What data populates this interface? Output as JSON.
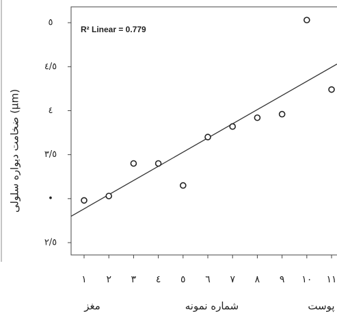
{
  "chart_data": {
    "type": "scatter",
    "y_label": "ضخامت دیواره سلولی (μm)",
    "x_label": "شماره نمونه",
    "group_labels": [
      "مغز",
      "پوست"
    ],
    "annotation": "R² Linear = 0.779",
    "x": [
      1,
      2,
      3,
      4,
      5,
      6,
      7,
      8,
      9,
      10,
      11
    ],
    "values": [
      2.98,
      3.03,
      3.4,
      3.4,
      3.15,
      3.7,
      3.82,
      3.92,
      3.96,
      5.03,
      4.24
    ],
    "fit_line": {
      "x": [
        0.475,
        11.22
      ],
      "y": [
        2.8,
        4.53
      ]
    },
    "xlim": [
      0.475,
      11.22
    ],
    "ylim": [
      2.36,
      5.18
    ],
    "xticks": [
      {
        "value": 1,
        "label": "۱"
      },
      {
        "value": 2,
        "label": "۲"
      },
      {
        "value": 3,
        "label": "۳"
      },
      {
        "value": 4,
        "label": "٤"
      },
      {
        "value": 5,
        "label": "٥"
      },
      {
        "value": 6,
        "label": "٦"
      },
      {
        "value": 7,
        "label": "٧"
      },
      {
        "value": 8,
        "label": "٨"
      },
      {
        "value": 9,
        "label": "٩"
      },
      {
        "value": 10,
        "label": "١٠"
      },
      {
        "value": 11,
        "label": "١١"
      }
    ],
    "yticks": [
      {
        "value": 2.5,
        "label": "٢/٥"
      },
      {
        "value": 3,
        "label": "•"
      },
      {
        "value": 3.5,
        "label": "٣/٥"
      },
      {
        "value": 4,
        "label": "٤"
      },
      {
        "value": 4.5,
        "label": "٤/٥"
      },
      {
        "value": 5,
        "label": "٥"
      }
    ],
    "color": "#222222"
  }
}
